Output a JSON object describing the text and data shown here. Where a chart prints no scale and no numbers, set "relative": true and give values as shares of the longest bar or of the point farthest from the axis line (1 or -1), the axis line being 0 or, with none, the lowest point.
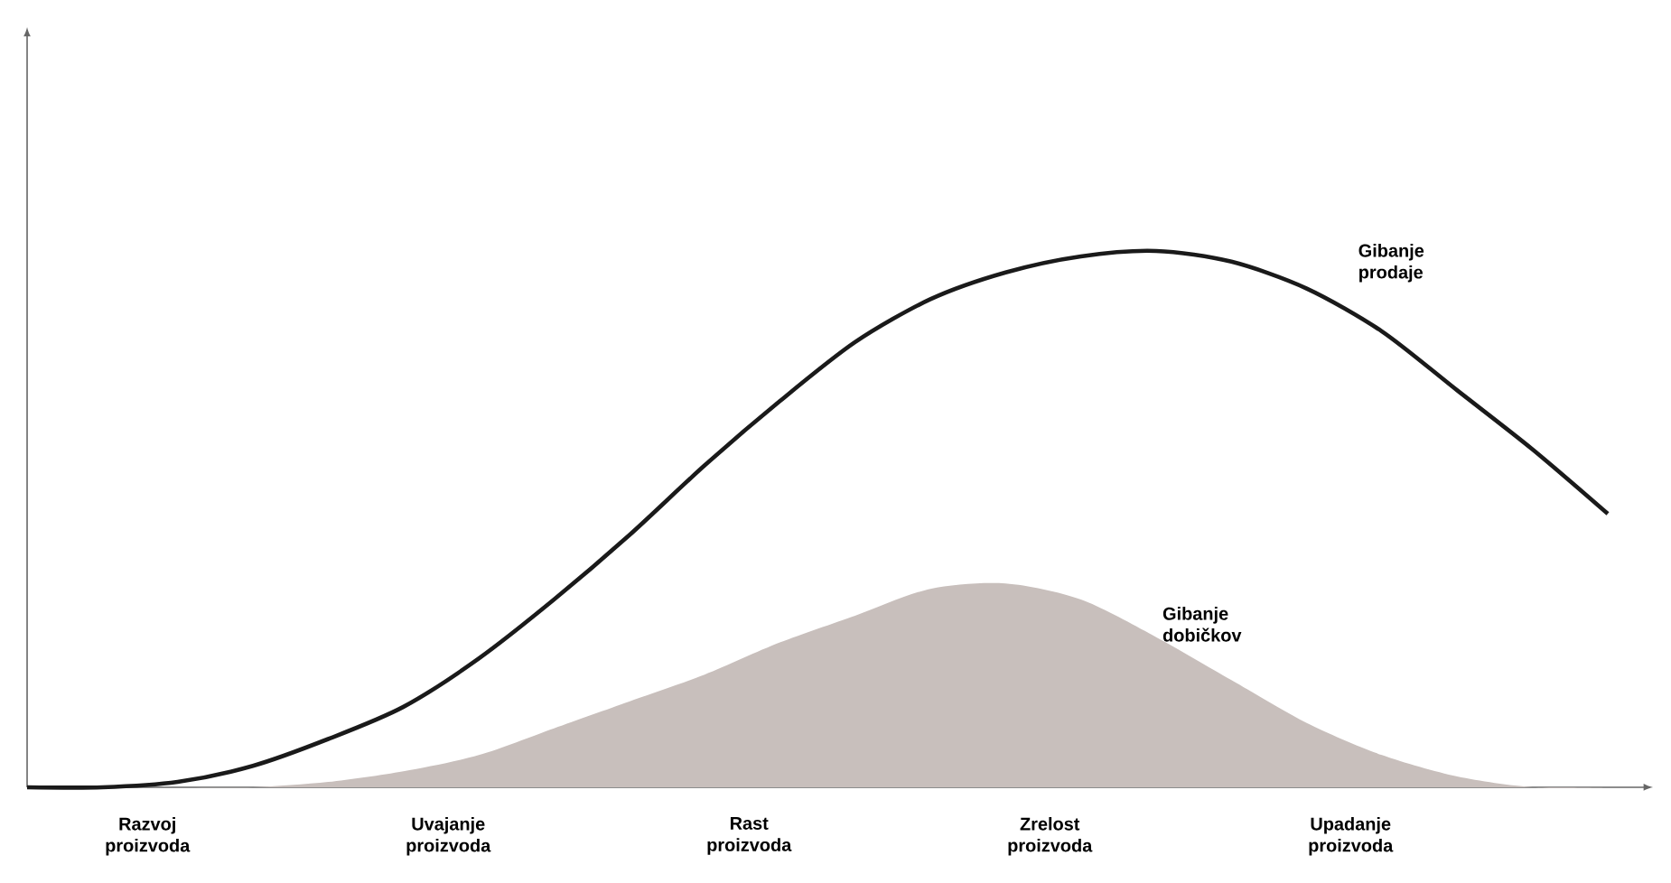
{
  "chart_data": {
    "type": "line",
    "relative": true,
    "categories": [
      null,
      null,
      null,
      null,
      null,
      null,
      null,
      null,
      null,
      null,
      null,
      null,
      null,
      null,
      null,
      null,
      null,
      null,
      null,
      null,
      null,
      null
    ],
    "series": [
      {
        "name": "Gibanje dobičkov",
        "type": "area",
        "color": "#c8bfbc",
        "values": [
          0,
          0,
          0,
          0,
          0.01,
          0.03,
          0.06,
          0.11,
          0.16,
          0.21,
          0.27,
          0.32,
          0.37,
          0.38,
          0.35,
          0.28,
          0.2,
          0.12,
          0.06,
          0.02,
          0,
          0
        ]
      },
      {
        "name": "Gibanje prodaje",
        "color": "#1a1a1a",
        "values": [
          0,
          0,
          0.01,
          0.04,
          0.09,
          0.15,
          0.24,
          0.35,
          0.47,
          0.6,
          0.72,
          0.83,
          0.91,
          0.96,
          0.99,
          1.0,
          0.98,
          0.93,
          0.85,
          0.74,
          0.63,
          0.51
        ]
      }
    ],
    "annotations": [
      "Razvoj proizvoda",
      "Uvajanje proizvoda",
      "Rast proizvoda",
      "Zrelost proizvoda",
      "Upadanje proizvoda"
    ],
    "legend": false,
    "marker": "none",
    "line_style": "solid"
  }
}
